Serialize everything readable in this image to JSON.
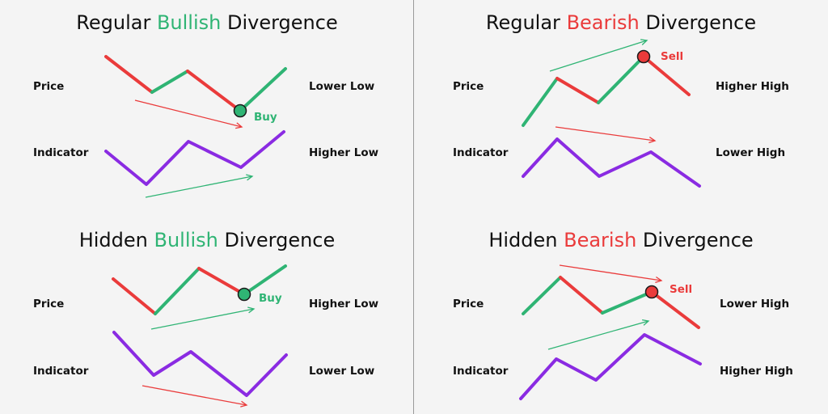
{
  "colors": {
    "bullish": "#2fb474",
    "bearish": "#ea3b3b",
    "indicator": "#8a2be2",
    "background": "#f4f4f4"
  },
  "panels": [
    {
      "title_pre": "Regular ",
      "title_word": "Bullish",
      "title_post": " Divergence",
      "price_label": "Price",
      "indicator_label": "Indicator",
      "price_note": "Lower Low",
      "indicator_note": "Higher Low",
      "signal": "Buy"
    },
    {
      "title_pre": "Regular ",
      "title_word": "Bearish",
      "title_post": " Divergence",
      "price_label": "Price",
      "indicator_label": "Indicator",
      "price_note": "Higher High",
      "indicator_note": "Lower High",
      "signal": "Sell"
    },
    {
      "title_pre": "Hidden ",
      "title_word": "Bullish",
      "title_post": " Divergence",
      "price_label": "Price",
      "indicator_label": "Indicator",
      "price_note": "Higher Low",
      "indicator_note": "Lower Low",
      "signal": "Buy"
    },
    {
      "title_pre": "Hidden ",
      "title_word": "Bearish",
      "title_post": " Divergence",
      "price_label": "Price",
      "indicator_label": "Indicator",
      "price_note": "Lower High",
      "indicator_note": "Higher High",
      "signal": "Sell"
    }
  ]
}
